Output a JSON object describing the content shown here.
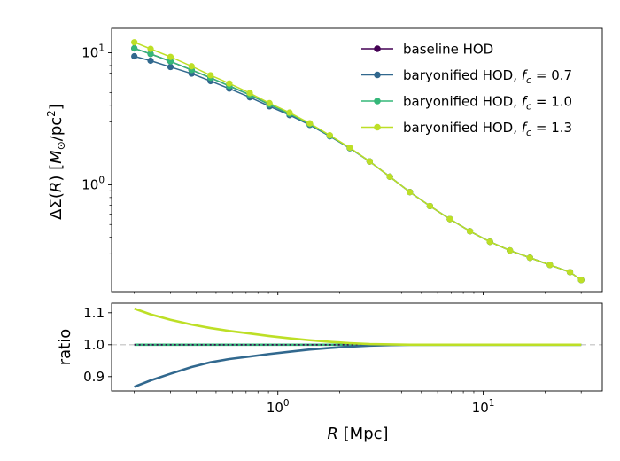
{
  "chart_data": {
    "type": "line",
    "x": [
      0.2,
      0.24,
      0.3,
      0.38,
      0.47,
      0.58,
      0.73,
      0.91,
      1.14,
      1.43,
      1.79,
      2.24,
      2.8,
      3.51,
      4.39,
      5.5,
      6.88,
      8.61,
      10.78,
      13.49,
      16.89,
      21.13,
      26.45,
      30.0
    ],
    "panels": [
      {
        "name": "main",
        "type": "line",
        "yscale": "log",
        "xscale": "log",
        "xlim": [
          0.155,
          38.0
        ],
        "ylim": [
          0.155,
          15.3
        ],
        "ylabel_tex": [
          "ΔΣ(",
          "R",
          ") [",
          "M",
          "⊙",
          "/pc",
          "2",
          "]"
        ],
        "xticks": [
          {
            "value": 1.0,
            "base": "10",
            "exp": "0"
          },
          {
            "value": 10.0,
            "base": "10",
            "exp": "1"
          }
        ],
        "yticks": [
          {
            "value": 1.0,
            "base": "10",
            "exp": "0"
          },
          {
            "value": 10.0,
            "base": "10",
            "exp": "1"
          }
        ],
        "legend": {
          "placement": "top-right",
          "entries": [
            {
              "label": "baseline HOD",
              "fc": ""
            },
            {
              "label": "baryonified HOD, ",
              "fc": "0.7"
            },
            {
              "label": "baryonified HOD, ",
              "fc": "1.0"
            },
            {
              "label": "baryonified HOD, ",
              "fc": "1.3"
            }
          ]
        },
        "series": [
          {
            "name": "baseline HOD",
            "color": "#440154",
            "values": [
              10.8,
              9.8,
              8.6,
              7.4,
              6.45,
              5.6,
              4.8,
              4.05,
              3.45,
              2.88,
              2.35,
              1.9,
              1.5,
              1.15,
              0.88,
              0.69,
              0.55,
              0.445,
              0.37,
              0.318,
              0.28,
              0.247,
              0.218,
              0.19
            ]
          },
          {
            "name": "baryonified HOD, fc = 0.7",
            "color": "#31688e",
            "values": [
              9.4,
              8.7,
              7.8,
              6.95,
              6.1,
              5.35,
              4.6,
              3.93,
              3.37,
              2.84,
              2.33,
              1.89,
              1.5,
              1.15,
              0.88,
              0.69,
              0.55,
              0.445,
              0.37,
              0.318,
              0.28,
              0.247,
              0.218,
              0.19
            ]
          },
          {
            "name": "baryonified HOD, fc = 1.0",
            "color": "#35b779",
            "values": [
              10.8,
              9.8,
              8.6,
              7.4,
              6.45,
              5.6,
              4.8,
              4.05,
              3.45,
              2.88,
              2.35,
              1.9,
              1.5,
              1.15,
              0.88,
              0.69,
              0.55,
              0.445,
              0.37,
              0.318,
              0.28,
              0.247,
              0.218,
              0.19
            ]
          },
          {
            "name": "baryonified HOD, fc = 1.3",
            "color": "#bddf26",
            "values": [
              12.0,
              10.7,
              9.3,
              7.9,
              6.75,
              5.85,
              4.95,
              4.15,
              3.52,
              2.92,
              2.37,
              1.91,
              1.5,
              1.15,
              0.88,
              0.69,
              0.55,
              0.445,
              0.37,
              0.318,
              0.28,
              0.247,
              0.218,
              0.19
            ]
          }
        ]
      },
      {
        "name": "ratio",
        "type": "line",
        "xscale": "log",
        "xlim": [
          0.155,
          38.0
        ],
        "ylim": [
          0.855,
          1.13
        ],
        "ylabel": "ratio",
        "xlabel_var": "R",
        "xlabel_unit": " [Mpc]",
        "reference_line": 1.0,
        "yticks": [
          {
            "value": 0.9,
            "label": "0.9"
          },
          {
            "value": 1.0,
            "label": "1.0"
          },
          {
            "value": 1.1,
            "label": "1.1"
          }
        ],
        "xticks": [
          {
            "value": 1.0,
            "base": "10",
            "exp": "0"
          },
          {
            "value": 10.0,
            "base": "10",
            "exp": "1"
          }
        ],
        "series": [
          {
            "name": "baseline HOD",
            "color": "#440154",
            "style": "dotted",
            "values": [
              1.0,
              1.0,
              1.0,
              1.0,
              1.0,
              1.0,
              1.0,
              1.0,
              1.0,
              1.0,
              1.0,
              1.0,
              1.0,
              1.0,
              1.0,
              1.0,
              1.0,
              1.0,
              1.0,
              1.0,
              1.0,
              1.0,
              1.0,
              1.0
            ]
          },
          {
            "name": "baryonified HOD, fc = 0.7",
            "color": "#31688e",
            "values": [
              0.868,
              0.888,
              0.909,
              0.93,
              0.945,
              0.955,
              0.963,
              0.971,
              0.978,
              0.985,
              0.99,
              0.994,
              0.997,
              0.999,
              1.0,
              1.0,
              1.0,
              1.0,
              1.0,
              1.0,
              1.0,
              1.0,
              1.0,
              1.0
            ]
          },
          {
            "name": "baryonified HOD, fc = 1.0",
            "color": "#35b779",
            "values": [
              1.0,
              1.0,
              1.0,
              1.0,
              1.0,
              1.0,
              1.0,
              1.0,
              1.0,
              1.0,
              1.0,
              1.0,
              1.0,
              1.0,
              1.0,
              1.0,
              1.0,
              1.0,
              1.0,
              1.0,
              1.0,
              1.0,
              1.0,
              1.0
            ]
          },
          {
            "name": "baryonified HOD, fc = 1.3",
            "color": "#bddf26",
            "values": [
              1.113,
              1.095,
              1.078,
              1.063,
              1.052,
              1.043,
              1.035,
              1.027,
              1.02,
              1.014,
              1.009,
              1.005,
              1.002,
              1.001,
              1.0,
              1.0,
              1.0,
              1.0,
              1.0,
              1.0,
              1.0,
              1.0,
              1.0,
              1.0
            ]
          }
        ]
      }
    ]
  }
}
